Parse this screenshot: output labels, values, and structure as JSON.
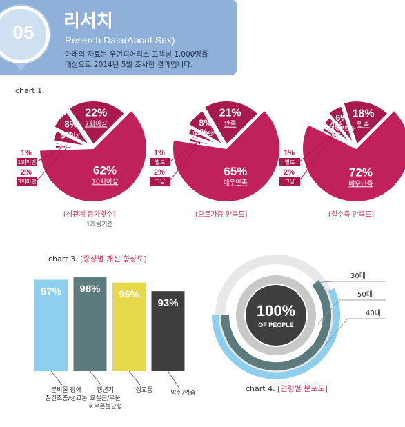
{
  "header": {
    "number": "05",
    "title": "리서치",
    "subtitle": "Reserch Data(About Sex)",
    "description_line1": "아래의 자료는 우먼피어리스 고객님 1,000명을",
    "description_line2": "대상으로 2014년 5월 조사한 결과입니다."
  },
  "chart1_label": "chart 1.",
  "colors": {
    "pie_main": "#c0215a",
    "pie_dark": "#a81a4d",
    "bar_blue": "#8ecfef",
    "bar_teal": "#5d7b7c",
    "bar_yellow": "#e6d84a",
    "bar_dark": "#3e3e3e",
    "ring_light": "#e8e8e8",
    "ring_gray": "#c8c8c8",
    "ring_teal": "#5d7b7c",
    "ring_blue": "#8ecfef",
    "header_bg": "#8eb0d9"
  },
  "chart_data": [
    {
      "type": "pie",
      "title": "[성관계 증가횟수]",
      "subtitle": "1개월기준",
      "slices": [
        {
          "label": "10회이상",
          "value": 62
        },
        {
          "label": "7회이상",
          "value": 22
        },
        {
          "label": "5회이상",
          "value": 8
        },
        {
          "label": "5회미만",
          "value": 5
        },
        {
          "label": "1회미만",
          "value": 1
        },
        {
          "label": "3회미만",
          "value": 2
        }
      ]
    },
    {
      "type": "pie",
      "title": "[오르가즘 만족도]",
      "slices": [
        {
          "label": "매우만족",
          "value": 65
        },
        {
          "label": "만족",
          "value": 21
        },
        {
          "label": "대체로만족",
          "value": 8
        },
        {
          "label": "보통",
          "value": 3
        },
        {
          "label": "별로",
          "value": 1
        },
        {
          "label": "그냥",
          "value": 2
        }
      ]
    },
    {
      "type": "pie",
      "title": "[질수축 만족도]",
      "slices": [
        {
          "label": "매우만족",
          "value": 72
        },
        {
          "label": "만족",
          "value": 18
        },
        {
          "label": "대체로만족",
          "value": 6
        },
        {
          "label": "보통",
          "value": 4
        },
        {
          "label": "별로",
          "value": 1
        },
        {
          "label": "그냥",
          "value": 2
        }
      ]
    },
    {
      "type": "bar",
      "label": "chart 3.",
      "title": "[증상별 개선 향상도]",
      "categories": [
        "분비물 장애\n질건조증/성교통",
        "갱년기\n요실금/우울\n호르몬불균형",
        "성교통",
        "악취/염증"
      ],
      "values": [
        97,
        98,
        96,
        93
      ],
      "value_labels": [
        "97%",
        "98%",
        "96%",
        "93%"
      ]
    },
    {
      "type": "pie",
      "label": "chart 4.",
      "title": "[연령별 분포도]",
      "center_value": "100%",
      "center_text": "OF PEOPLE",
      "rings": [
        {
          "label": "30대"
        },
        {
          "label": "50대"
        },
        {
          "label": "40대"
        }
      ]
    }
  ]
}
